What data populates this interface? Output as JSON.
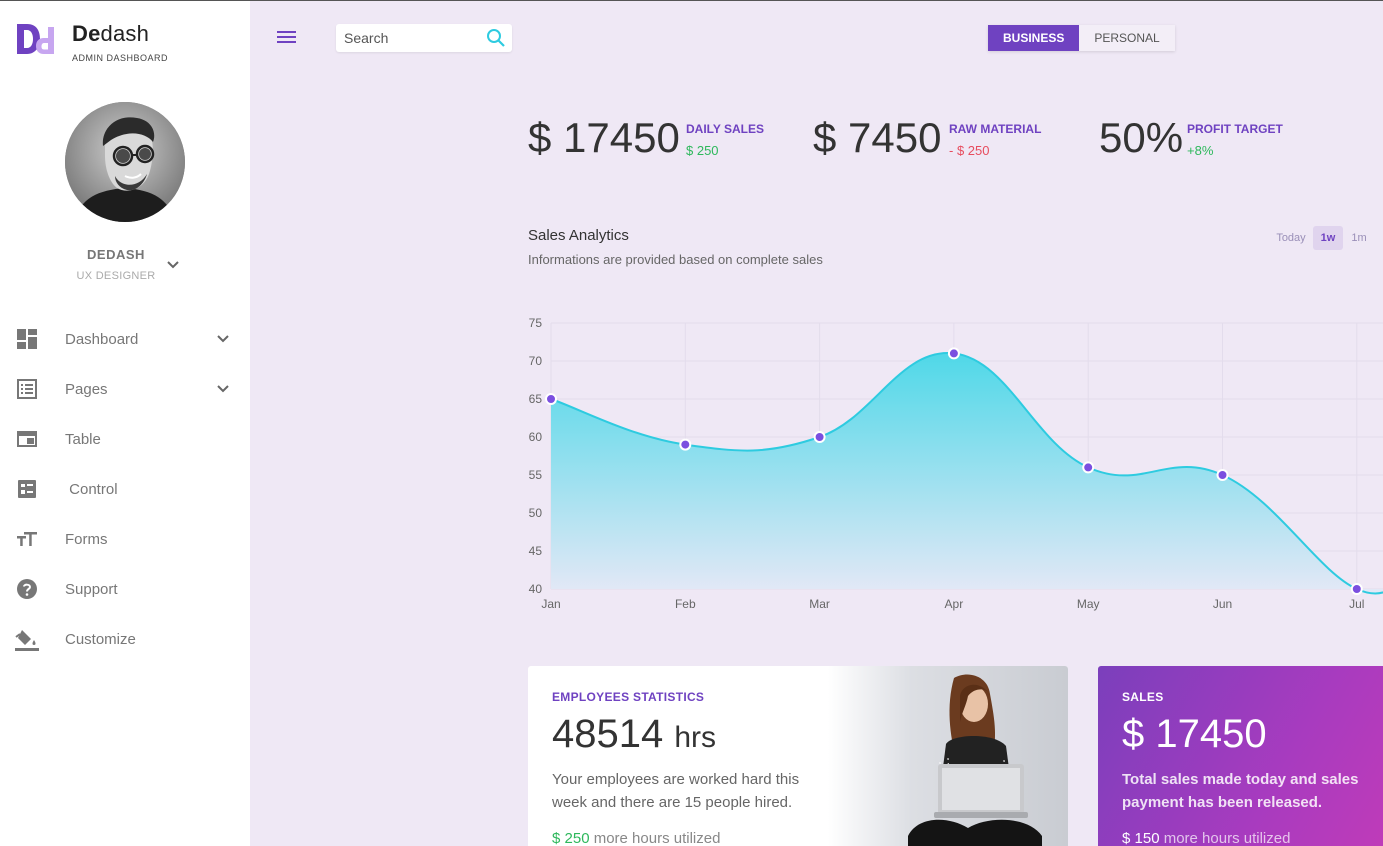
{
  "brand": {
    "name_bold": "De",
    "name_rest": "dash",
    "subtitle": "ADMIN DASHBOARD"
  },
  "profile": {
    "name": "DEDASH",
    "role": "UX DESIGNER"
  },
  "nav": [
    {
      "label": "Dashboard",
      "icon": "dashboard-icon",
      "has_submenu": true
    },
    {
      "label": "Pages",
      "icon": "pages-list-icon",
      "has_submenu": true
    },
    {
      "label": "Table",
      "icon": "table-icon",
      "has_submenu": false
    },
    {
      "label": " Control",
      "icon": "control-icon",
      "has_submenu": false
    },
    {
      "label": "Forms",
      "icon": "forms-text-icon",
      "has_submenu": false
    },
    {
      "label": "Support",
      "icon": "help-circle-icon",
      "has_submenu": false
    },
    {
      "label": "Customize",
      "icon": "paint-bucket-icon",
      "has_submenu": false
    }
  ],
  "search": {
    "placeholder": "Search",
    "value": ""
  },
  "mode_toggle": {
    "options": [
      "BUSINESS",
      "PERSONAL"
    ],
    "selected": "BUSINESS"
  },
  "stats": [
    {
      "value": "$ 17450",
      "label": "DAILY SALES",
      "delta": "$ 250",
      "trend": "up"
    },
    {
      "value": "$ 7450",
      "label": "RAW MATERIAL",
      "delta": "- $ 250",
      "trend": "down"
    },
    {
      "value": "50%",
      "label": "PROFIT TARGET",
      "delta": "+8%",
      "trend": "up"
    }
  ],
  "analytics": {
    "title": "Sales Analytics",
    "subtitle": "Informations are provided based on complete sales",
    "ranges": [
      "Today",
      "1w",
      "1m"
    ],
    "selected_range": "1w"
  },
  "chart_data": {
    "type": "area",
    "categories": [
      "Jan",
      "Feb",
      "Mar",
      "Apr",
      "May",
      "Jun",
      "Jul"
    ],
    "series": [
      {
        "values": [
          65,
          59,
          60,
          71,
          56,
          55,
          40
        ]
      }
    ],
    "yticks": [
      40,
      45,
      50,
      55,
      60,
      65,
      70,
      75
    ],
    "ylim": [
      40,
      75
    ],
    "grid": true,
    "colors": {
      "line": "#2ecbe0",
      "fill_top": "#4fd8e8",
      "fill_bottom": "#e4e8f6",
      "point": "#7b4fe0"
    }
  },
  "employees_card": {
    "label": "EMPLOYEES STATISTICS",
    "value": "48514",
    "unit": "hrs",
    "text_line1": "Your employees are worked hard this",
    "text_line2": "week and there are 15 people hired.",
    "foot_value": "$ 250",
    "foot_text": "more hours utilized"
  },
  "sales_card": {
    "label": "SALES",
    "value": "$ 17450",
    "text_line1": "Total sales made today and sales",
    "text_line2": "payment has been released.",
    "foot_value": "$ 150",
    "foot_text": "more hours utilized"
  },
  "colors": {
    "accent": "#6f42c1",
    "background": "#efe8f5",
    "positive": "#2eb85c",
    "negative": "#e74c5e"
  }
}
